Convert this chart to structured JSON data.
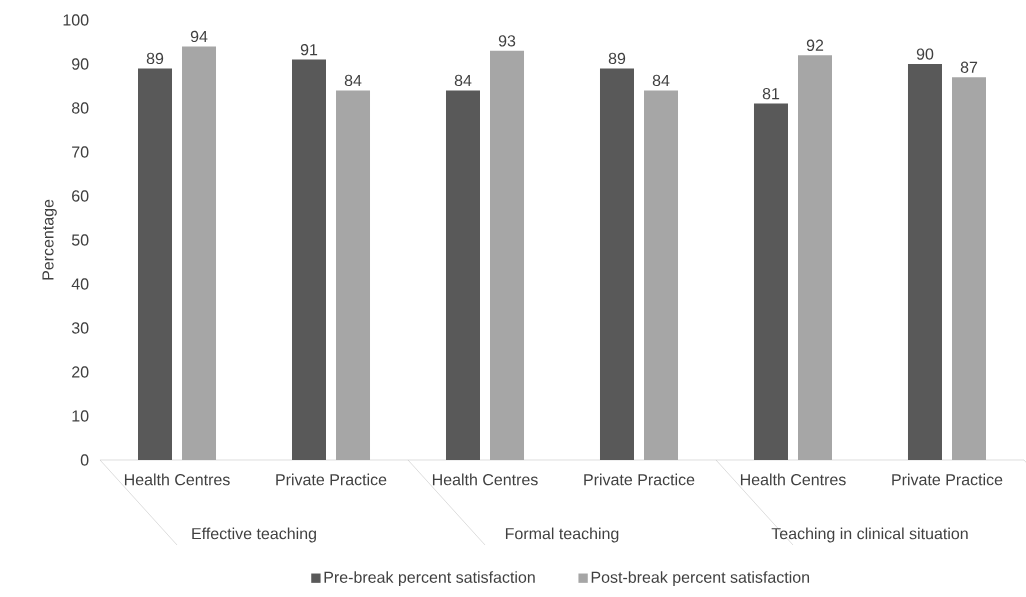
{
  "chart_data": {
    "type": "bar",
    "ylabel": "Percentage",
    "categories": [
      "Health Centres",
      "Private Practice",
      "Health Centres",
      "Private Practice",
      "Health Centres",
      "Private Practice"
    ],
    "annotations": [
      "Effective teaching",
      "Formal teaching",
      "Teaching in clinical situation"
    ],
    "series": [
      {
        "name": "Pre-break percent satisfaction",
        "color": "#595959",
        "values": [
          89,
          91,
          84,
          89,
          81,
          90
        ]
      },
      {
        "name": "Post-break percent satisfaction",
        "color": "#a6a6a6",
        "values": [
          94,
          84,
          93,
          84,
          92,
          87
        ]
      }
    ],
    "ylim": [
      0,
      100
    ],
    "yticks": [
      0,
      10,
      20,
      30,
      40,
      50,
      60,
      70,
      80,
      90,
      100
    ],
    "data_labels": true,
    "grid": false,
    "legend": "bottom"
  }
}
